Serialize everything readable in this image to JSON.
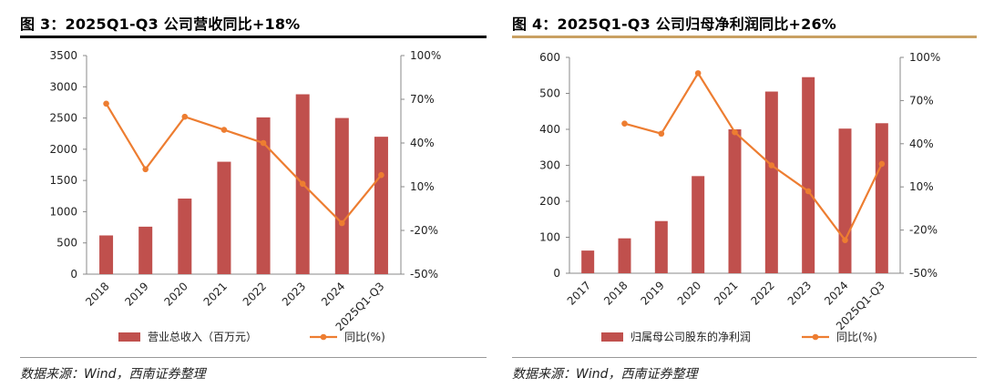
{
  "figures": [
    {
      "title": "图 3：2025Q1-Q3 公司营收同比+18%",
      "source": "数据来源：Wind，西南证券整理",
      "rule_color": "#000000"
    },
    {
      "title": "图 4：2025Q1-Q3 公司归母净利润同比+26%",
      "source": "数据来源：Wind，西南证券整理",
      "rule_color": "#C9A062"
    }
  ],
  "chart_data": [
    {
      "type": "bar",
      "categories": [
        "2018",
        "2019",
        "2020",
        "2021",
        "2022",
        "2023",
        "2024",
        "2025Q1-Q3"
      ],
      "series": [
        {
          "name": "营业总收入（百万元）",
          "kind": "bar",
          "axis": "left",
          "color": "#C0504D",
          "values": [
            620,
            760,
            1210,
            1800,
            2510,
            2880,
            2500,
            2200
          ]
        },
        {
          "name": "同比(%)",
          "kind": "line",
          "axis": "right",
          "color": "#ED7D31",
          "values": [
            67,
            22,
            58,
            49,
            40,
            12,
            -15,
            18
          ]
        }
      ],
      "left_axis": {
        "min": 0,
        "max": 3500,
        "ticks": [
          "0",
          "500",
          "1000",
          "1500",
          "2000",
          "2500",
          "3000",
          "3500"
        ]
      },
      "right_axis": {
        "min": -50,
        "max": 100,
        "ticks": [
          "-50%",
          "-20%",
          "10%",
          "40%",
          "70%",
          "100%"
        ]
      },
      "grid": false,
      "legend_position": "bottom"
    },
    {
      "type": "bar",
      "categories": [
        "2017",
        "2018",
        "2019",
        "2020",
        "2021",
        "2022",
        "2023",
        "2024",
        "2025Q1-Q3"
      ],
      "series": [
        {
          "name": "归属母公司股东的净利润",
          "kind": "bar",
          "axis": "left",
          "color": "#C0504D",
          "values": [
            63,
            97,
            145,
            270,
            400,
            505,
            545,
            402,
            417
          ]
        },
        {
          "name": "同比(%)",
          "kind": "line",
          "axis": "right",
          "color": "#ED7D31",
          "values": [
            null,
            54,
            47,
            89,
            48,
            25,
            7,
            -27,
            26
          ]
        }
      ],
      "left_axis": {
        "min": 0,
        "max": 600,
        "ticks": [
          "0",
          "100",
          "200",
          "300",
          "400",
          "500",
          "600"
        ]
      },
      "right_axis": {
        "min": -50,
        "max": 100,
        "ticks": [
          "-50%",
          "-20%",
          "10%",
          "40%",
          "70%",
          "100%"
        ]
      },
      "grid": false,
      "legend_position": "bottom"
    }
  ]
}
